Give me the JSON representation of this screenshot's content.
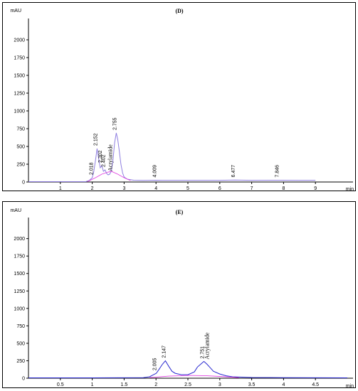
{
  "page": {
    "background": "#ffffff"
  },
  "chart_data": [
    {
      "type": "line",
      "title": "(D)",
      "ylabel": "mAU",
      "xlabel": "min",
      "xlim": [
        0,
        10
      ],
      "ylim": [
        0,
        2200
      ],
      "xticks": [
        1,
        2,
        3,
        4,
        5,
        6,
        7,
        8,
        9
      ],
      "xtick_labels": [
        "1",
        "2",
        "3",
        "4",
        "5",
        "6",
        "7",
        "8",
        "9"
      ],
      "yticks": [
        0,
        250,
        500,
        750,
        1000,
        1250,
        1500,
        1750,
        2000
      ],
      "ytick_labels": [
        "0",
        "250",
        "500",
        "750",
        "1000",
        "1250",
        "1500",
        "1750",
        "2000"
      ],
      "grid": false,
      "signal_color": "#8f7fe0",
      "baseline_color": "#e040e0",
      "series": [
        {
          "x": [
            0,
            1.8,
            1.9,
            2.0,
            2.05,
            2.1,
            2.152,
            2.2,
            2.25,
            2.302,
            2.35,
            2.402,
            2.45,
            2.5,
            2.55,
            2.6,
            2.65,
            2.7,
            2.755,
            2.8,
            2.85,
            2.9,
            2.95,
            3.0,
            3.1,
            3.3,
            3.6,
            4.0,
            4.2,
            5.0,
            6.0,
            6.477,
            7.0,
            7.846,
            8.5,
            9.0
          ],
          "y": [
            5,
            5,
            20,
            60,
            150,
            300,
            470,
            330,
            200,
            230,
            150,
            170,
            120,
            100,
            110,
            160,
            300,
            550,
            690,
            600,
            430,
            250,
            130,
            70,
            40,
            25,
            22,
            25,
            24,
            24,
            24,
            27,
            24,
            25,
            24,
            24
          ]
        },
        {
          "x": [
            1.85,
            2.1,
            2.3,
            2.5,
            2.6,
            2.8,
            3.0,
            3.2
          ],
          "y": [
            5,
            60,
            110,
            140,
            150,
            110,
            60,
            20
          ]
        }
      ],
      "peak_labels": [
        {
          "x": 2.018,
          "y": 60,
          "text": "2.018"
        },
        {
          "x": 2.152,
          "y": 470,
          "text": "2.152"
        },
        {
          "x": 2.302,
          "y": 230,
          "text": "2.302"
        },
        {
          "x": 2.402,
          "y": 170,
          "text": "2.402"
        },
        {
          "x": 2.755,
          "y": 690,
          "text": "2.755"
        },
        {
          "x": 4.009,
          "y": 25,
          "text": "4.009"
        },
        {
          "x": 6.477,
          "y": 27,
          "text": "6.477"
        },
        {
          "x": 7.846,
          "y": 25,
          "text": "7.846"
        }
      ],
      "annotations": [
        {
          "x": 2.62,
          "y": 130,
          "text": "Acrylamide"
        }
      ]
    },
    {
      "type": "line",
      "title": "(E)",
      "ylabel": "mAU",
      "xlabel": "min",
      "xlim": [
        0,
        5
      ],
      "ylim": [
        0,
        2200
      ],
      "xticks": [
        0.5,
        1,
        1.5,
        2,
        2.5,
        3,
        3.5,
        4,
        4.5
      ],
      "xtick_labels": [
        "0.5",
        "1",
        "1.5",
        "2",
        "2.5",
        "3",
        "3.5",
        "4",
        "4.5"
      ],
      "yticks": [
        0,
        250,
        500,
        750,
        1000,
        1250,
        1500,
        1750,
        2000
      ],
      "ytick_labels": [
        "0",
        "250",
        "500",
        "750",
        "1000",
        "1250",
        "1500",
        "1750",
        "2000"
      ],
      "grid": false,
      "signal_color": "#2a2ad0",
      "baseline_color": "#e040e0",
      "series": [
        {
          "x": [
            0,
            1.0,
            1.8,
            1.9,
            1.95,
            2.005,
            2.05,
            2.1,
            2.147,
            2.2,
            2.25,
            2.3,
            2.4,
            2.5,
            2.6,
            2.65,
            2.7,
            2.751,
            2.8,
            2.85,
            2.9,
            3.0,
            3.1,
            3.2,
            3.5,
            4.0,
            5.0
          ],
          "y": [
            5,
            5,
            8,
            20,
            45,
            70,
            130,
            200,
            250,
            170,
            100,
            70,
            50,
            50,
            90,
            160,
            200,
            240,
            200,
            150,
            100,
            60,
            35,
            20,
            10,
            8,
            5
          ],
          "color_key": "signal_color"
        },
        {
          "x": [
            1.9,
            2.2,
            2.5,
            2.8,
            3.1,
            3.3
          ],
          "y": [
            8,
            30,
            40,
            35,
            20,
            8
          ],
          "color_key": "baseline_color"
        }
      ],
      "peak_labels": [
        {
          "x": 2.005,
          "y": 70,
          "text": "2.005"
        },
        {
          "x": 2.147,
          "y": 250,
          "text": "2.147"
        },
        {
          "x": 2.751,
          "y": 240,
          "text": "2.751"
        }
      ],
      "annotations": [
        {
          "x": 2.83,
          "y": 250,
          "text": "Acrylamide"
        }
      ]
    }
  ]
}
